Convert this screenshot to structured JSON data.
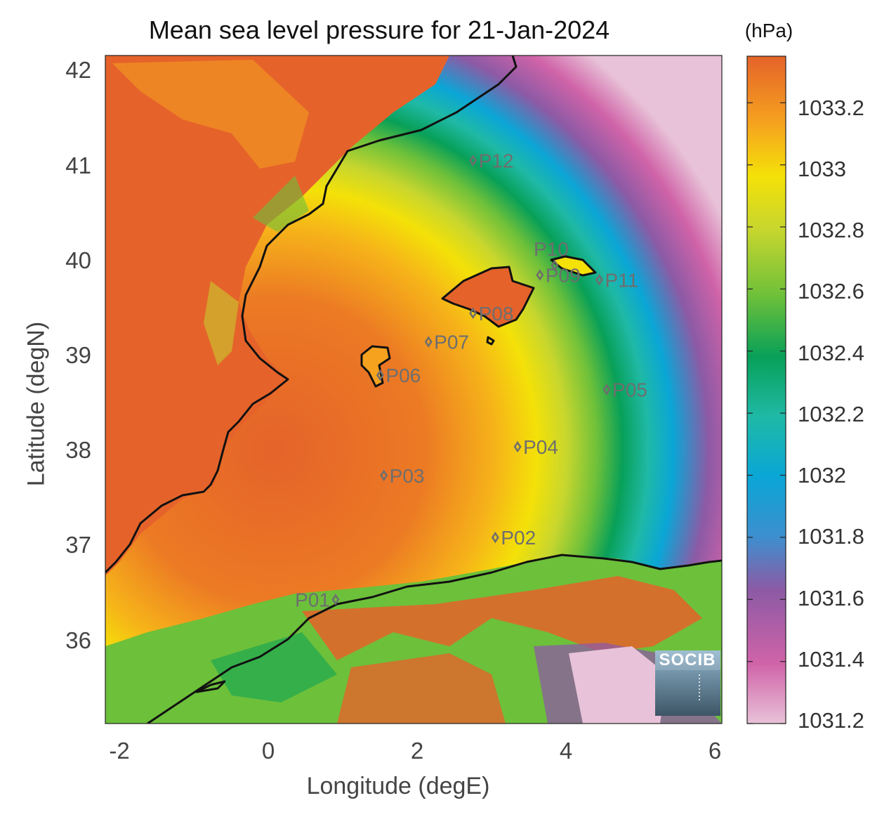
{
  "title": "Mean sea level pressure for 21-Jan-2024",
  "units": "(hPa)",
  "axes": {
    "ylabel": "Latitude (degN)",
    "xlabel": "Longitude (degE)",
    "lat_ticks": [
      "42",
      "41",
      "40",
      "39",
      "38",
      "37",
      "36"
    ],
    "lon_ticks": [
      "-2",
      "0",
      "2",
      "4",
      "6"
    ],
    "lat_range": [
      35.2,
      42.2
    ],
    "lon_range": [
      -2.25,
      6.05
    ]
  },
  "colorbar": {
    "ticks": [
      "1033.2",
      "1033",
      "1032.8",
      "1032.6",
      "1032.4",
      "1032.2",
      "1032",
      "1031.8",
      "1031.6",
      "1031.4",
      "1031.2"
    ],
    "range": [
      1031.2,
      1033.35
    ],
    "colors": [
      "#e8c2d8",
      "#d063a8",
      "#8d5aa5",
      "#3d8fcf",
      "#0aa6d6",
      "#1fb9a6",
      "#08a058",
      "#6dc03a",
      "#c7d62e",
      "#f4e108",
      "#f6a21f",
      "#e5632a"
    ]
  },
  "points": [
    {
      "id": "P01",
      "lon": 0.85,
      "lat": 36.5
    },
    {
      "id": "P02",
      "lon": 3.0,
      "lat": 37.15
    },
    {
      "id": "P03",
      "lon": 1.5,
      "lat": 37.8
    },
    {
      "id": "P04",
      "lon": 3.3,
      "lat": 38.1
    },
    {
      "id": "P05",
      "lon": 4.5,
      "lat": 38.7
    },
    {
      "id": "P06",
      "lon": 1.45,
      "lat": 38.85
    },
    {
      "id": "P07",
      "lon": 2.1,
      "lat": 39.2
    },
    {
      "id": "P08",
      "lon": 2.7,
      "lat": 39.5
    },
    {
      "id": "P09",
      "lon": 3.6,
      "lat": 39.9
    },
    {
      "id": "P10",
      "lon": 3.8,
      "lat": 40.0
    },
    {
      "id": "P11",
      "lon": 4.4,
      "lat": 39.85
    },
    {
      "id": "P12",
      "lon": 2.7,
      "lat": 41.1
    }
  ],
  "logo": "SOCIB"
}
